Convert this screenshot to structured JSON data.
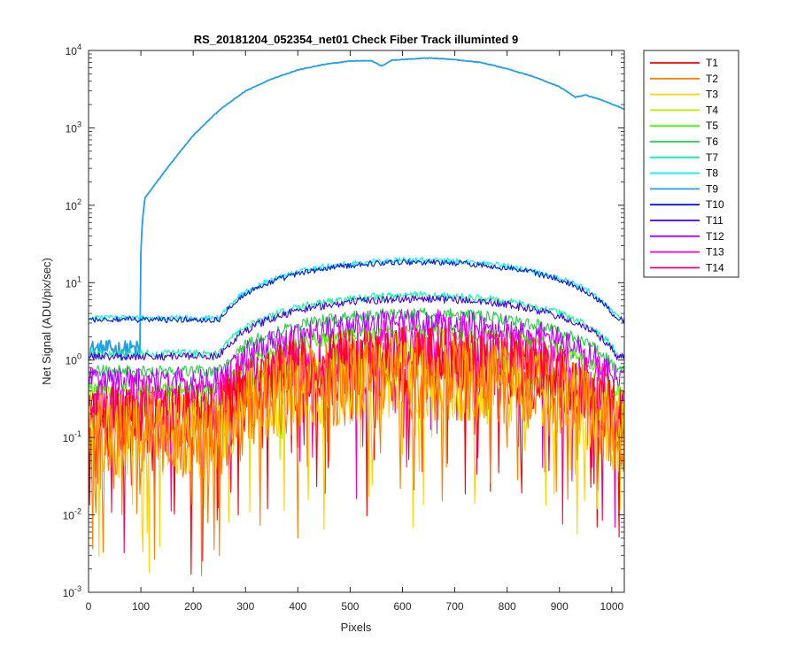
{
  "chart_data": {
    "type": "line",
    "title": "RS_20181204_052354_net01   Check Fiber     Track illuminted 9",
    "xlabel": "Pixels",
    "ylabel": "Net Signal (ADU/pix/sec)",
    "xlim": [
      0,
      1024
    ],
    "ylim": [
      0.001,
      10000
    ],
    "yscale": "log",
    "grid": false,
    "legend_position": "outside-top-right",
    "x_ticks": [
      "0",
      "100",
      "200",
      "300",
      "400",
      "500",
      "600",
      "700",
      "800",
      "900",
      "1000"
    ],
    "y_ticks": [
      {
        "base": "10",
        "exp": "-3"
      },
      {
        "base": "10",
        "exp": "-2"
      },
      {
        "base": "10",
        "exp": "-1"
      },
      {
        "base": "10",
        "exp": "0"
      },
      {
        "base": "10",
        "exp": "1"
      },
      {
        "base": "10",
        "exp": "2"
      },
      {
        "base": "10",
        "exp": "3"
      },
      {
        "base": "10",
        "exp": "4"
      }
    ],
    "series": [
      {
        "name": "T1",
        "color": "#ff0000",
        "peak": 0.9,
        "spread": 1.45,
        "dips": 0.06
      },
      {
        "name": "T2",
        "color": "#ff7f00",
        "peak": 0.6,
        "spread": 1.55,
        "dips": 0.07
      },
      {
        "name": "T3",
        "color": "#ffd200",
        "peak": 0.55,
        "spread": 1.5,
        "dips": 0.06
      },
      {
        "name": "T4",
        "color": "#b5f000",
        "peak": 1.1,
        "spread": 1.3,
        "dips": 0.03
      },
      {
        "name": "T5",
        "color": "#40ff00",
        "peak": 2.3,
        "spread": 1.08,
        "dips": 0.0
      },
      {
        "name": "T6",
        "color": "#20d040",
        "peak": 4.0,
        "spread": 1.06,
        "dips": 0.0
      },
      {
        "name": "T7",
        "color": "#00ffa0",
        "peak": 6.8,
        "spread": 1.04,
        "dips": 0.0
      },
      {
        "name": "T8",
        "color": "#00f0ff",
        "peak": 19.5,
        "spread": 1.03,
        "dips": 0.0
      },
      {
        "name": "T9",
        "color": "#1f9fe5",
        "peak": 8000,
        "spread": 1.0,
        "dips": 0.0
      },
      {
        "name": "T10",
        "color": "#0018d8",
        "peak": 18.5,
        "spread": 1.03,
        "dips": 0.0
      },
      {
        "name": "T11",
        "color": "#4a00e0",
        "peak": 6.2,
        "spread": 1.04,
        "dips": 0.0
      },
      {
        "name": "T12",
        "color": "#b400ff",
        "peak": 3.0,
        "spread": 1.15,
        "dips": 0.01
      },
      {
        "name": "T13",
        "color": "#ff00cc",
        "peak": 1.5,
        "spread": 1.35,
        "dips": 0.04
      },
      {
        "name": "T14",
        "color": "#ff0066",
        "peak": 1.0,
        "spread": 1.4,
        "dips": 0.05
      }
    ]
  }
}
